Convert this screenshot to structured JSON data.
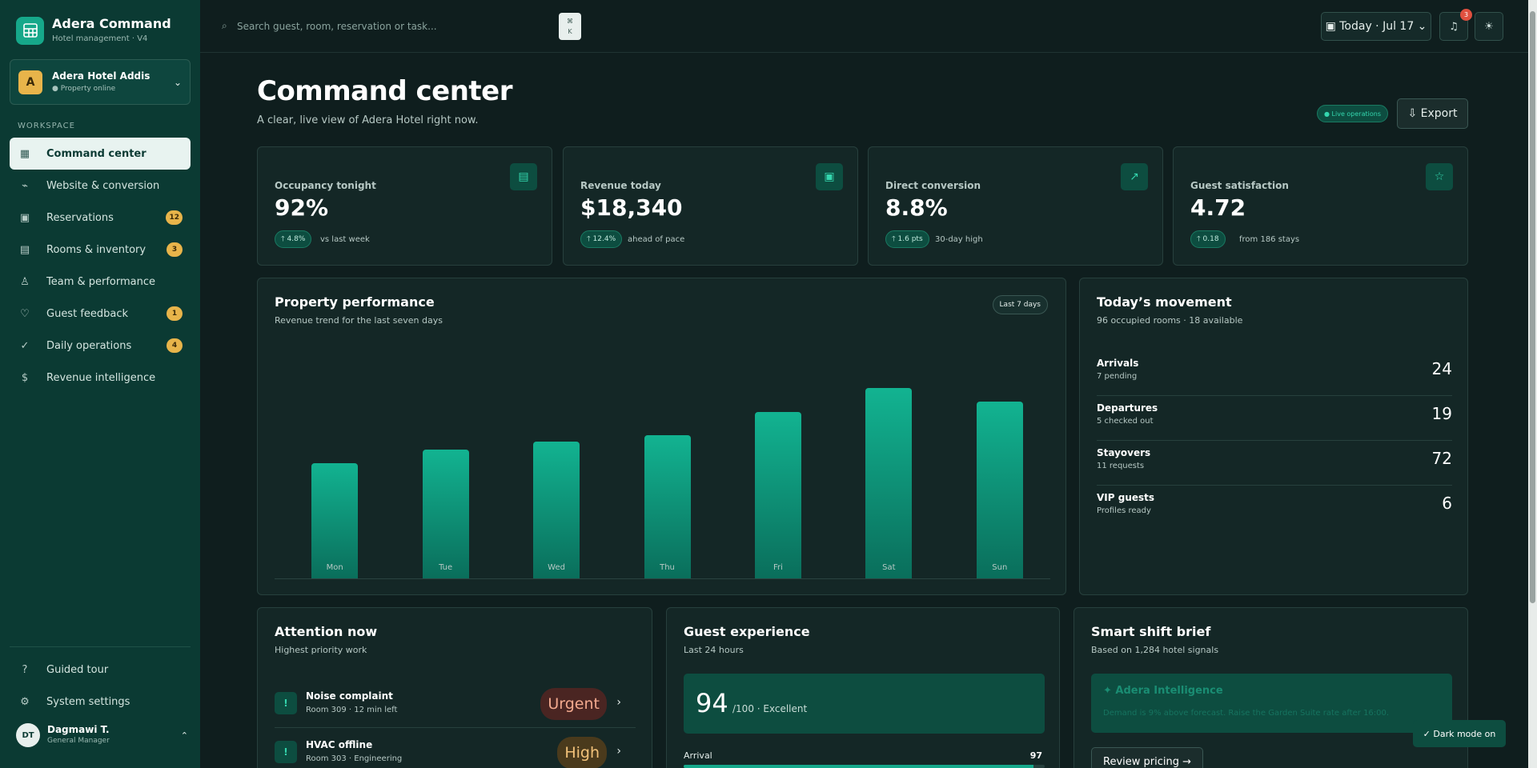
{
  "brand": {
    "name": "Adera Command",
    "subtitle": "Hotel management · V4"
  },
  "property": {
    "avatar": "A",
    "name": "Adera Hotel Addis",
    "status": "● Property online"
  },
  "sidebar": {
    "section_label": "WORKSPACE",
    "items": [
      {
        "icon": "▦",
        "icon_name": "grid-icon",
        "label": "Command center",
        "badge": "",
        "active": true
      },
      {
        "icon": "⌁",
        "icon_name": "trend-icon",
        "label": "Website & conversion",
        "badge": ""
      },
      {
        "icon": "▣",
        "icon_name": "calendar-icon",
        "label": "Reservations",
        "badge": "12"
      },
      {
        "icon": "▤",
        "icon_name": "bed-icon",
        "label": "Rooms & inventory",
        "badge": "3"
      },
      {
        "icon": "♙",
        "icon_name": "person-icon",
        "label": "Team & performance",
        "badge": ""
      },
      {
        "icon": "♡",
        "icon_name": "heart-icon",
        "label": "Guest feedback",
        "badge": "1"
      },
      {
        "icon": "✓",
        "icon_name": "check-icon",
        "label": "Daily operations",
        "badge": "4"
      },
      {
        "icon": "$",
        "icon_name": "dollar-icon",
        "label": "Revenue intelligence",
        "badge": ""
      }
    ],
    "bottom_items": [
      {
        "icon": "?",
        "icon_name": "help-icon",
        "label": "Guided tour"
      },
      {
        "icon": "⚙",
        "icon_name": "gear-icon",
        "label": "System settings"
      }
    ]
  },
  "user": {
    "initials": "DT",
    "name": "Dagmawi T.",
    "role": "General Manager"
  },
  "topbar": {
    "search_placeholder": "Search guest, room, reservation or task...",
    "kbd_line1": "⌘",
    "kbd_line2": "K",
    "date_label": "▣ Today · Jul 17 ⌄",
    "notification_count": "3"
  },
  "page": {
    "title": "Command center",
    "subtitle": "A clear, live view of Adera Hotel right now.",
    "live_label": "● Live operations",
    "export_label": "⇩ Export"
  },
  "kpis": [
    {
      "label": "Occupancy tonight",
      "value": "92%",
      "delta": "🡑 4.8%",
      "note": "vs last week",
      "icon": "▤",
      "icon_name": "bed-icon"
    },
    {
      "label": "Revenue today",
      "value": "$18,340",
      "delta": "🡑 12.4%",
      "note": "ahead of pace",
      "icon": "▣",
      "icon_name": "wallet-icon"
    },
    {
      "label": "Direct conversion",
      "value": "8.8%",
      "delta": "🡑 1.6 pts",
      "note": "30-day high",
      "icon": "↗",
      "icon_name": "arrow-up-right-icon"
    },
    {
      "label": "Guest satisfaction",
      "value": "4.72",
      "delta": "🡑 0.18",
      "note": "from 186 stays",
      "icon": "☆",
      "icon_name": "star-icon"
    }
  ],
  "performance": {
    "title": "Property performance",
    "subtitle": "Revenue trend for the last seven days",
    "range_label": "Last 7 days"
  },
  "chart_data": {
    "type": "bar",
    "categories": [
      "Mon",
      "Tue",
      "Wed",
      "Thu",
      "Fri",
      "Sat",
      "Sun"
    ],
    "values": [
      58,
      65,
      69,
      72,
      84,
      96,
      89
    ],
    "ylim": [
      0,
      100
    ],
    "grid": false,
    "color": "#12b391"
  },
  "movement": {
    "title": "Today’s movement",
    "subtitle": "96 occupied rooms · 18 available",
    "rows": [
      {
        "label": "Arrivals",
        "sub": "7 pending",
        "value": "24"
      },
      {
        "label": "Departures",
        "sub": "5 checked out",
        "value": "19"
      },
      {
        "label": "Stayovers",
        "sub": "11 requests",
        "value": "72"
      },
      {
        "label": "VIP guests",
        "sub": "Profiles ready",
        "value": "6"
      }
    ]
  },
  "attention": {
    "title": "Attention now",
    "subtitle": "Highest priority work",
    "items": [
      {
        "icon": "!",
        "title": "Noise complaint",
        "sub": "Room 309 · 12 min left",
        "badge": "Urgent"
      },
      {
        "icon": "!",
        "title": "HVAC offline",
        "sub": "Room 303 · Engineering",
        "badge": "High"
      }
    ]
  },
  "experience": {
    "title": "Guest experience",
    "subtitle": "Last 24 hours",
    "score": "94",
    "score_sub": "/100 · Excellent",
    "metric_label": "Arrival",
    "metric_value": "97",
    "metric_fraction": 0.97
  },
  "brief": {
    "title": "Smart shift brief",
    "subtitle": "Based on 1,284 hotel signals",
    "ai_title": "✦ Adera Intelligence",
    "ai_text": "Demand is 9% above forecast. Raise the Garden Suite rate after 16:00.",
    "button_label": "Review pricing →"
  },
  "toast": {
    "label": "✓ Dark mode on"
  },
  "colors": {
    "sidebar": "#0b3a33",
    "accent": "#16a88a",
    "badge": "#e8b44a",
    "background": "#0f1e1e"
  }
}
